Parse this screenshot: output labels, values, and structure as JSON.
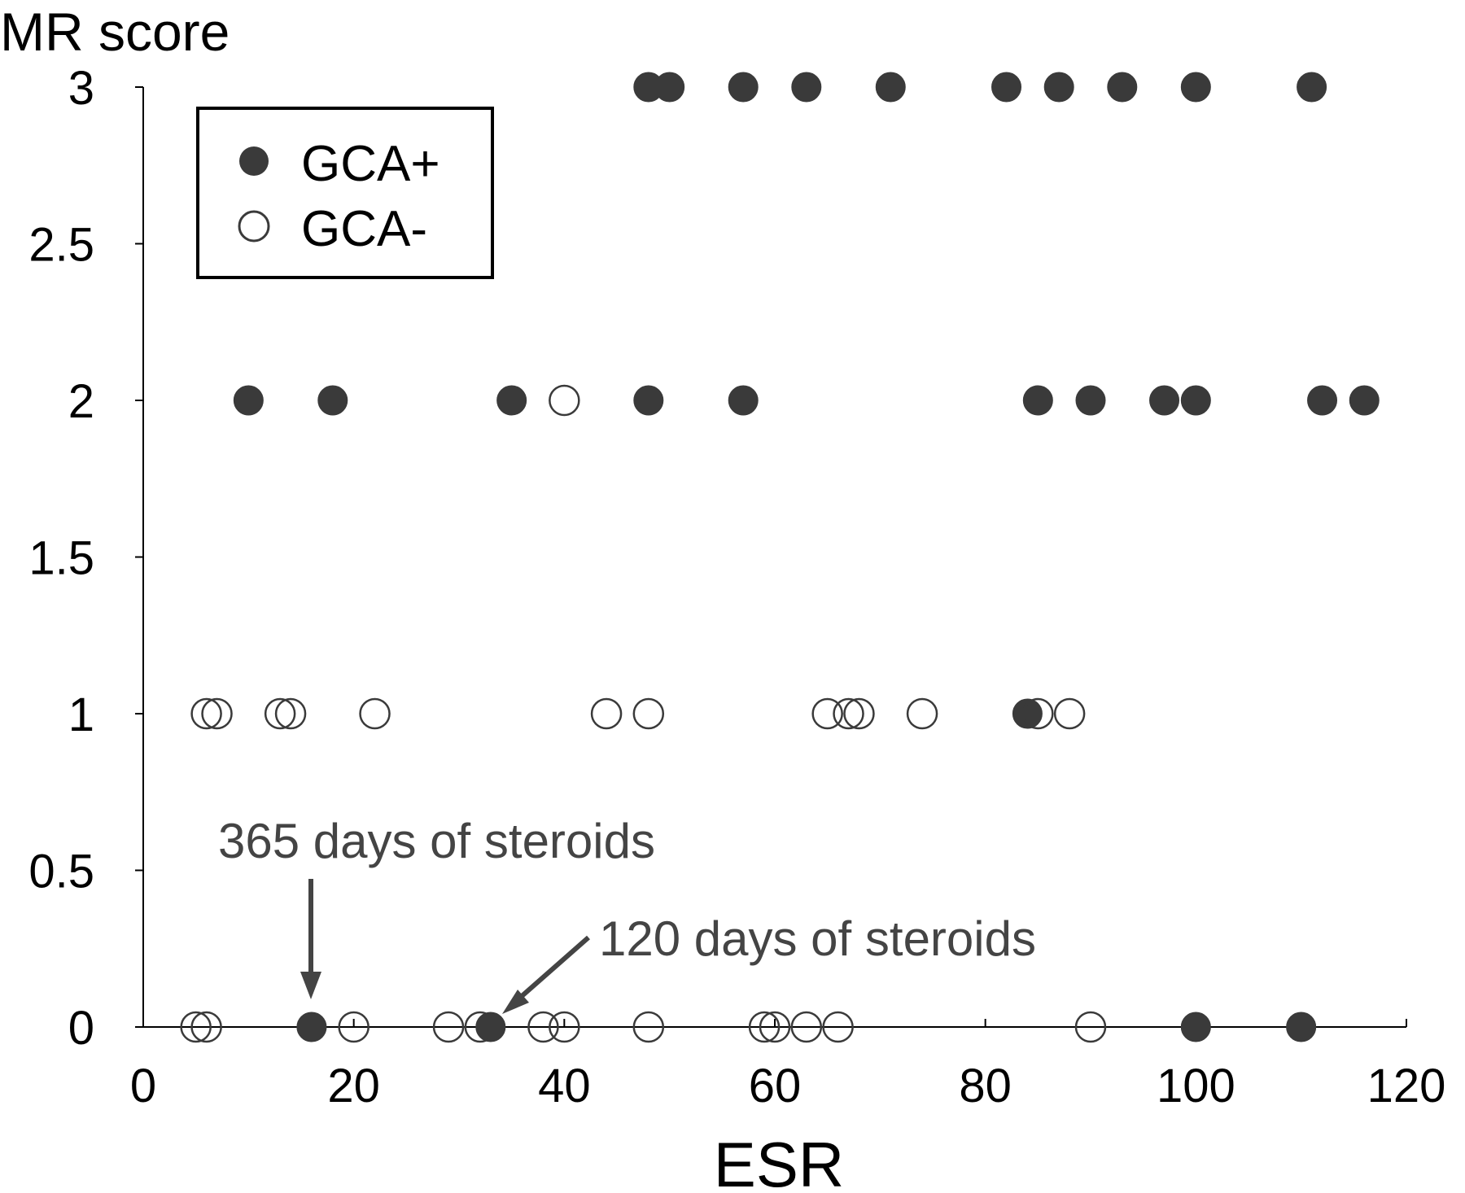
{
  "chart_data": {
    "type": "scatter",
    "title": "",
    "xlabel": "ESR",
    "ylabel": "MR score",
    "xlim": [
      0,
      120
    ],
    "ylim": [
      0,
      3
    ],
    "xticks": [
      "0",
      "20",
      "40",
      "60",
      "80",
      "100",
      "120"
    ],
    "yticks": [
      "0",
      "0.5",
      "1",
      "1.5",
      "2",
      "2.5",
      "3"
    ],
    "grid": false,
    "legend_position": "top-left",
    "series": [
      {
        "name": "GCA+",
        "marker": "filled-circle",
        "color": "#3a3a3a",
        "points": [
          [
            48,
            3
          ],
          [
            50,
            3
          ],
          [
            57,
            3
          ],
          [
            63,
            3
          ],
          [
            71,
            3
          ],
          [
            82,
            3
          ],
          [
            87,
            3
          ],
          [
            93,
            3
          ],
          [
            100,
            3
          ],
          [
            111,
            3
          ],
          [
            10,
            2
          ],
          [
            18,
            2
          ],
          [
            35,
            2
          ],
          [
            48,
            2
          ],
          [
            57,
            2
          ],
          [
            85,
            2
          ],
          [
            90,
            2
          ],
          [
            97,
            2
          ],
          [
            100,
            2
          ],
          [
            112,
            2
          ],
          [
            116,
            2
          ],
          [
            84,
            1
          ],
          [
            16,
            0
          ],
          [
            33,
            0
          ],
          [
            100,
            0
          ],
          [
            110,
            0
          ]
        ]
      },
      {
        "name": "GCA-",
        "marker": "open-circle",
        "color": "#3a3a3a",
        "points": [
          [
            40,
            2
          ],
          [
            6,
            1
          ],
          [
            7,
            1
          ],
          [
            13,
            1
          ],
          [
            14,
            1
          ],
          [
            22,
            1
          ],
          [
            44,
            1
          ],
          [
            48,
            1
          ],
          [
            65,
            1
          ],
          [
            67,
            1
          ],
          [
            68,
            1
          ],
          [
            74,
            1
          ],
          [
            85,
            1
          ],
          [
            88,
            1
          ],
          [
            5,
            0
          ],
          [
            6,
            0
          ],
          [
            20,
            0
          ],
          [
            29,
            0
          ],
          [
            32,
            0
          ],
          [
            38,
            0
          ],
          [
            40,
            0
          ],
          [
            48,
            0
          ],
          [
            59,
            0
          ],
          [
            60,
            0
          ],
          [
            63,
            0
          ],
          [
            66,
            0
          ],
          [
            90,
            0
          ]
        ]
      }
    ],
    "annotations": [
      {
        "text": "365 days of steroids",
        "target": [
          16,
          0
        ],
        "arrow": "down"
      },
      {
        "text": "120 days of steroids",
        "target": [
          33,
          0
        ],
        "arrow": "down-left"
      }
    ]
  }
}
